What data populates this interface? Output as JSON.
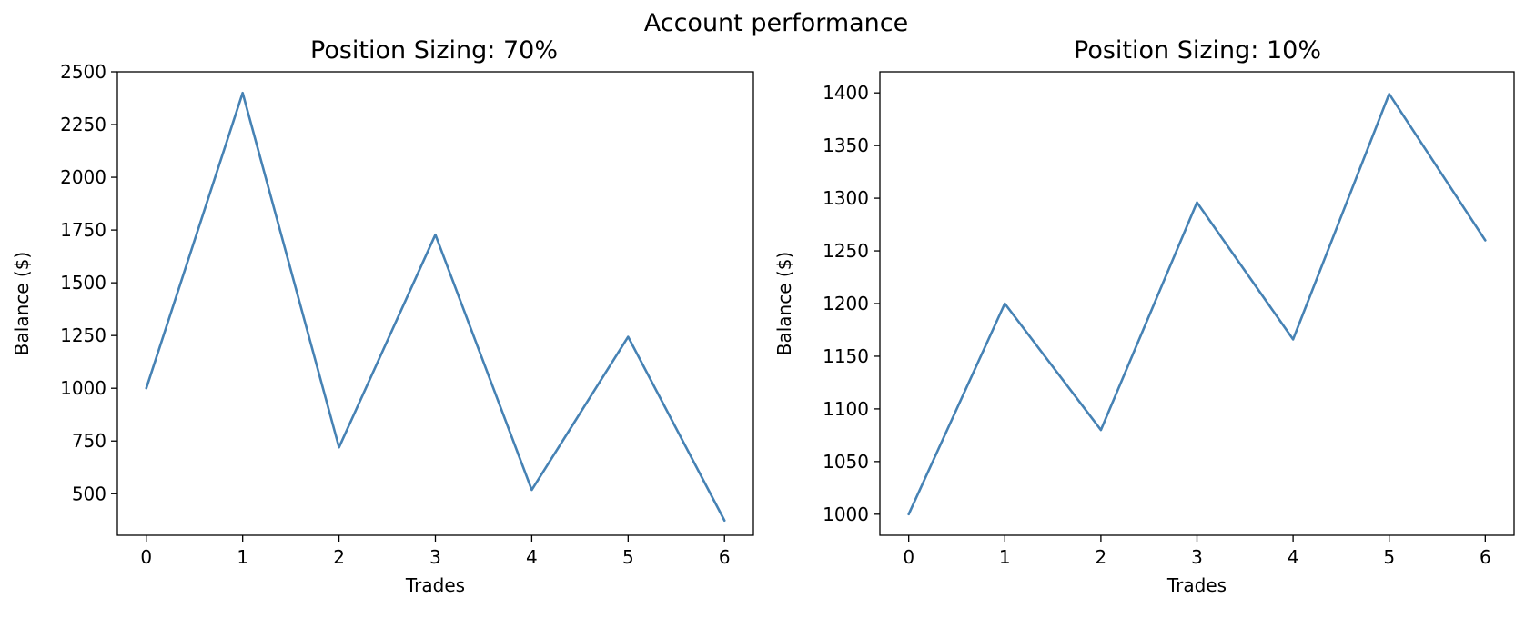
{
  "figure": {
    "title": "Account performance"
  },
  "chart_data": [
    {
      "type": "line",
      "title": "Position Sizing: 70%",
      "xlabel": "Trades",
      "ylabel": "Balance ($)",
      "x": [
        0,
        1,
        2,
        3,
        4,
        5,
        6
      ],
      "series": [
        {
          "values": [
            1000,
            2400,
            720,
            1728,
            518,
            1244,
            373
          ],
          "color": "#4682b4"
        }
      ],
      "xlim": [
        -0.3,
        6.3
      ],
      "ylim": [
        303,
        2500
      ],
      "xticks": [
        0,
        1,
        2,
        3,
        4,
        5,
        6
      ],
      "yticks": [
        500,
        750,
        1000,
        1250,
        1500,
        1750,
        2000,
        2250,
        2500
      ],
      "grid": false,
      "legend": "none"
    },
    {
      "type": "line",
      "title": "Position Sizing: 10%",
      "xlabel": "Trades",
      "ylabel": "Balance ($)",
      "x": [
        0,
        1,
        2,
        3,
        4,
        5,
        6
      ],
      "series": [
        {
          "values": [
            1000,
            1200,
            1080,
            1296,
            1166,
            1399,
            1260
          ],
          "color": "#4682b4"
        }
      ],
      "xlim": [
        -0.3,
        6.3
      ],
      "ylim": [
        980,
        1420
      ],
      "xticks": [
        0,
        1,
        2,
        3,
        4,
        5,
        6
      ],
      "yticks": [
        1000,
        1050,
        1100,
        1150,
        1200,
        1250,
        1300,
        1350,
        1400
      ],
      "grid": false,
      "legend": "none"
    }
  ]
}
